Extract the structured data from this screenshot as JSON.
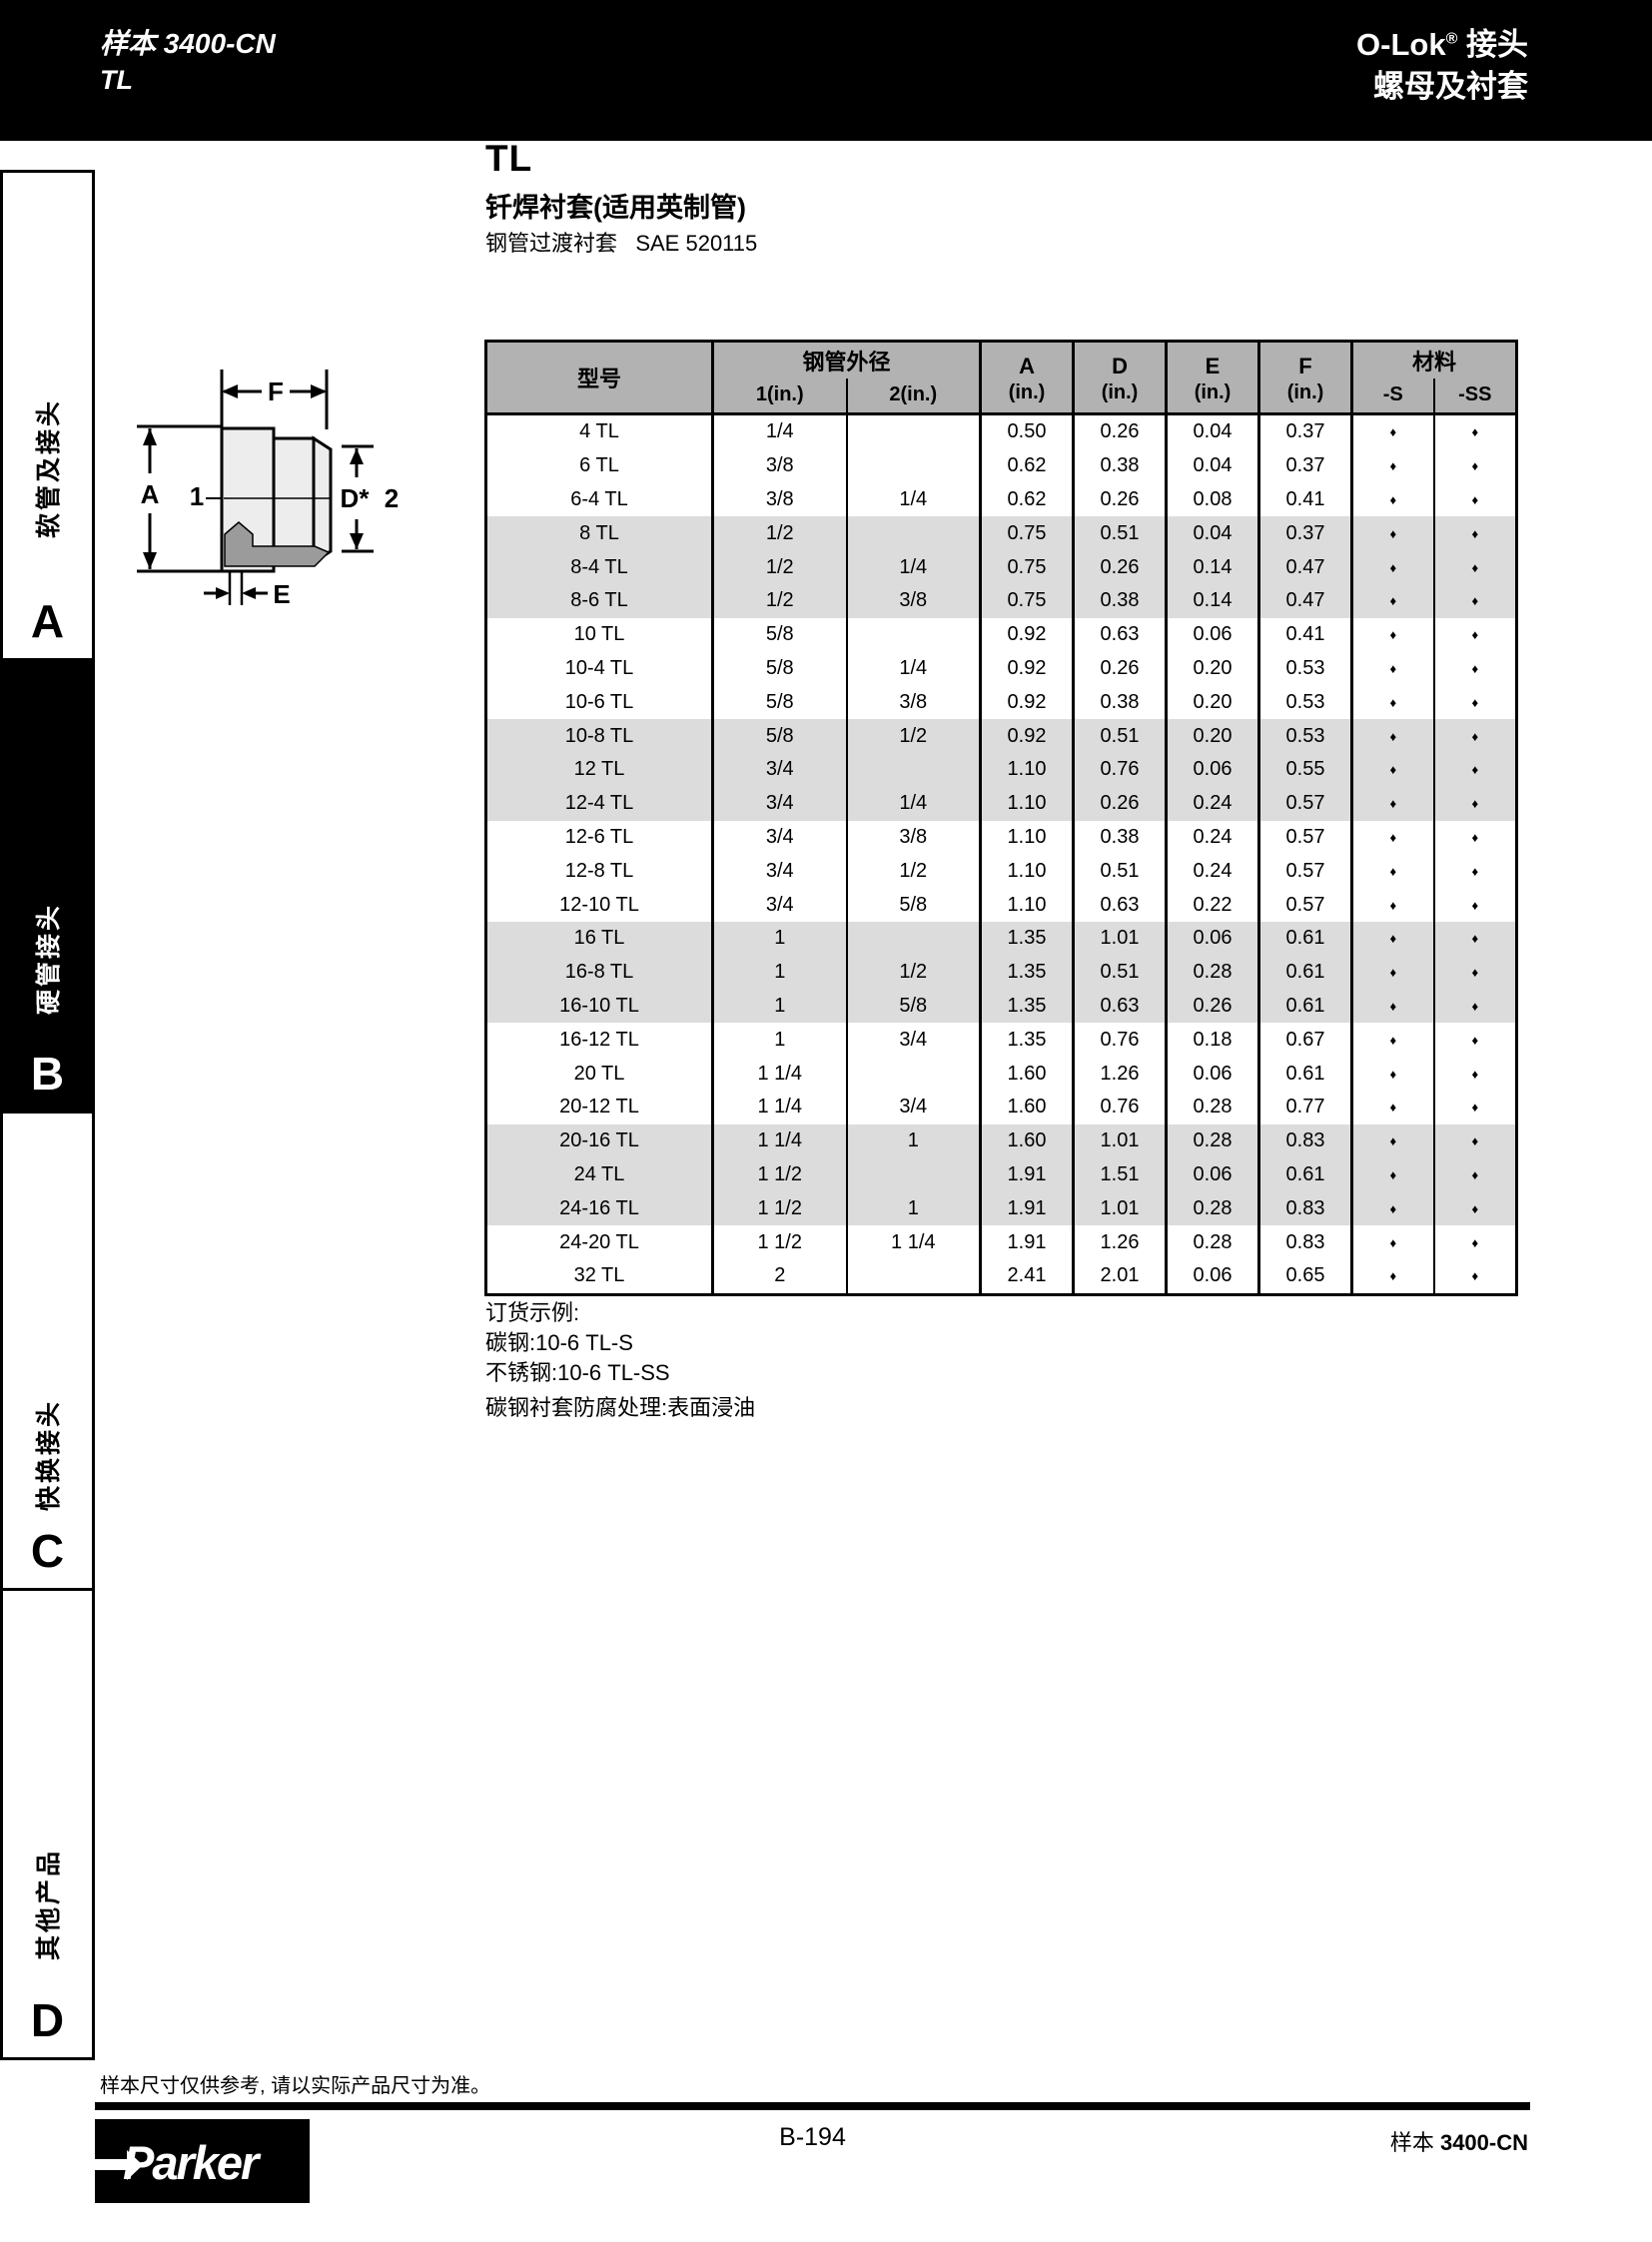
{
  "top_bar": {
    "catalog_line": "样本 3400-CN",
    "series_line": "TL",
    "brand": "O-Lok",
    "registered": "®",
    "brand_suffix": " 接头",
    "right_subtitle": "螺母及衬套"
  },
  "sidebar": {
    "sections": [
      {
        "label": "软管及接头",
        "letter": "A",
        "active": false
      },
      {
        "label": "硬管接头",
        "letter": "B",
        "active": true
      },
      {
        "label": "快换接头",
        "letter": "C",
        "active": false
      },
      {
        "label": "其他产品",
        "letter": "D",
        "active": false
      }
    ]
  },
  "content": {
    "title": "TL",
    "subtitle": "钎焊衬套(适用英制管)",
    "spec": "钢管过渡衬套   SAE 520115"
  },
  "diagram": {
    "labels": {
      "f": "F",
      "a": "A",
      "ref1": "1",
      "d": "D*",
      "ref2": "2",
      "e": "E"
    }
  },
  "table": {
    "header": {
      "model": "型号",
      "od": "钢管外径",
      "od1": "1(in.)",
      "od2": "2(in.)",
      "a": "A",
      "d": "D",
      "e": "E",
      "f": "F",
      "inch": "(in.)",
      "material": "材料",
      "s": "-S",
      "ss": "-SS"
    },
    "dot_glyph": "♦",
    "rows": [
      [
        "4 TL",
        "1/4",
        "",
        "0.50",
        "0.26",
        "0.04",
        "0.37",
        "♦",
        "♦"
      ],
      [
        "6 TL",
        "3/8",
        "",
        "0.62",
        "0.38",
        "0.04",
        "0.37",
        "♦",
        "♦"
      ],
      [
        "6-4 TL",
        "3/8",
        "1/4",
        "0.62",
        "0.26",
        "0.08",
        "0.41",
        "♦",
        "♦"
      ],
      [
        "8 TL",
        "1/2",
        "",
        "0.75",
        "0.51",
        "0.04",
        "0.37",
        "♦",
        "♦"
      ],
      [
        "8-4 TL",
        "1/2",
        "1/4",
        "0.75",
        "0.26",
        "0.14",
        "0.47",
        "♦",
        "♦"
      ],
      [
        "8-6 TL",
        "1/2",
        "3/8",
        "0.75",
        "0.38",
        "0.14",
        "0.47",
        "♦",
        "♦"
      ],
      [
        "10 TL",
        "5/8",
        "",
        "0.92",
        "0.63",
        "0.06",
        "0.41",
        "♦",
        "♦"
      ],
      [
        "10-4 TL",
        "5/8",
        "1/4",
        "0.92",
        "0.26",
        "0.20",
        "0.53",
        "♦",
        "♦"
      ],
      [
        "10-6 TL",
        "5/8",
        "3/8",
        "0.92",
        "0.38",
        "0.20",
        "0.53",
        "♦",
        "♦"
      ],
      [
        "10-8 TL",
        "5/8",
        "1/2",
        "0.92",
        "0.51",
        "0.20",
        "0.53",
        "♦",
        "♦"
      ],
      [
        "12 TL",
        "3/4",
        "",
        "1.10",
        "0.76",
        "0.06",
        "0.55",
        "♦",
        "♦"
      ],
      [
        "12-4 TL",
        "3/4",
        "1/4",
        "1.10",
        "0.26",
        "0.24",
        "0.57",
        "♦",
        "♦"
      ],
      [
        "12-6 TL",
        "3/4",
        "3/8",
        "1.10",
        "0.38",
        "0.24",
        "0.57",
        "♦",
        "♦"
      ],
      [
        "12-8 TL",
        "3/4",
        "1/2",
        "1.10",
        "0.51",
        "0.24",
        "0.57",
        "♦",
        "♦"
      ],
      [
        "12-10 TL",
        "3/4",
        "5/8",
        "1.10",
        "0.63",
        "0.22",
        "0.57",
        "♦",
        "♦"
      ],
      [
        "16 TL",
        "1",
        "",
        "1.35",
        "1.01",
        "0.06",
        "0.61",
        "♦",
        "♦"
      ],
      [
        "16-8 TL",
        "1",
        "1/2",
        "1.35",
        "0.51",
        "0.28",
        "0.61",
        "♦",
        "♦"
      ],
      [
        "16-10 TL",
        "1",
        "5/8",
        "1.35",
        "0.63",
        "0.26",
        "0.61",
        "♦",
        "♦"
      ],
      [
        "16-12 TL",
        "1",
        "3/4",
        "1.35",
        "0.76",
        "0.18",
        "0.67",
        "♦",
        "♦"
      ],
      [
        "20 TL",
        "1 1/4",
        "",
        "1.60",
        "1.26",
        "0.06",
        "0.61",
        "♦",
        "♦"
      ],
      [
        "20-12 TL",
        "1 1/4",
        "3/4",
        "1.60",
        "0.76",
        "0.28",
        "0.77",
        "♦",
        "♦"
      ],
      [
        "20-16 TL",
        "1 1/4",
        "1",
        "1.60",
        "1.01",
        "0.28",
        "0.83",
        "♦",
        "♦"
      ],
      [
        "24 TL",
        "1 1/2",
        "",
        "1.91",
        "1.51",
        "0.06",
        "0.61",
        "♦",
        "♦"
      ],
      [
        "24-16 TL",
        "1 1/2",
        "1",
        "1.91",
        "1.01",
        "0.28",
        "0.83",
        "♦",
        "♦"
      ],
      [
        "24-20 TL",
        "1 1/2",
        "1 1/4",
        "1.91",
        "1.26",
        "0.28",
        "0.83",
        "♦",
        "♦"
      ],
      [
        "32 TL",
        "2",
        "",
        "2.41",
        "2.01",
        "0.06",
        "0.65",
        "♦",
        "♦"
      ]
    ]
  },
  "notes": {
    "lines": [
      "订货示例:",
      "碳钢:10-6 TL-S",
      "不锈钢:10-6 TL-SS"
    ],
    "treatment": "碳钢衬套防腐处理:表面浸油"
  },
  "footer": {
    "disclaimer": "样本尺寸仅供参考, 请以实际产品尺寸为准。",
    "page_number": "B-194",
    "catalog_prefix": "样本 ",
    "catalog_number": "3400-CN",
    "logo_text": "Parker"
  },
  "colors": {
    "bar_black": "#000000",
    "header_gray": "#b2b2b2",
    "band_gray": "#dcdcdc",
    "section_dark": "#9b9b9b"
  }
}
